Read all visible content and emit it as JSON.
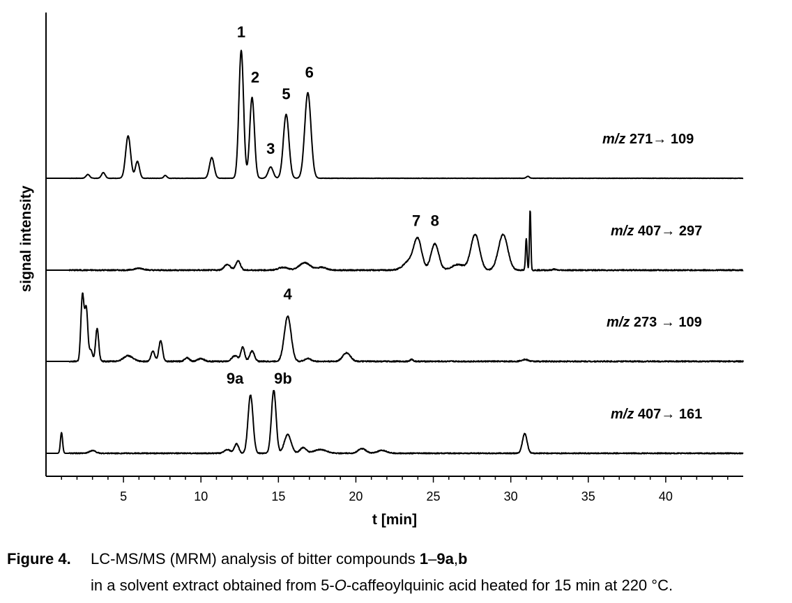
{
  "chart_data": {
    "type": "line",
    "xlabel": "t [min]",
    "ylabel": "signal intensity",
    "xlim": [
      0,
      45
    ],
    "xticks": [
      5,
      10,
      15,
      20,
      25,
      30,
      35,
      40
    ],
    "minor_tick_step": 1,
    "y_ticks_shown": false,
    "grid": false,
    "traces": [
      {
        "label_mz": "m/z",
        "label_rest": " 271→ 109",
        "baseline_end": 45,
        "peaks": [
          {
            "t": 2.7,
            "h": 0.04,
            "w": 0.12
          },
          {
            "t": 3.7,
            "h": 0.06,
            "w": 0.12
          },
          {
            "t": 5.3,
            "h": 0.45,
            "w": 0.16
          },
          {
            "t": 5.9,
            "h": 0.18,
            "w": 0.13
          },
          {
            "t": 7.7,
            "h": 0.03,
            "w": 0.1
          },
          {
            "t": 10.7,
            "h": 0.22,
            "w": 0.15
          },
          {
            "t": 12.6,
            "h": 1.36,
            "w": 0.15
          },
          {
            "t": 13.3,
            "h": 0.86,
            "w": 0.15
          },
          {
            "t": 14.5,
            "h": 0.12,
            "w": 0.16
          },
          {
            "t": 15.5,
            "h": 0.68,
            "w": 0.18
          },
          {
            "t": 16.9,
            "h": 0.91,
            "w": 0.2
          },
          {
            "t": 31.1,
            "h": 0.02,
            "w": 0.1
          }
        ],
        "noise": 0.003,
        "peak_labels": [
          {
            "text": "1",
            "t": 12.6,
            "h": 1.5
          },
          {
            "text": "2",
            "t": 13.5,
            "h": 1.02
          },
          {
            "text": "3",
            "t": 14.5,
            "h": 0.26
          },
          {
            "text": "5",
            "t": 15.5,
            "h": 0.84
          },
          {
            "text": "6",
            "t": 17.0,
            "h": 1.07
          }
        ]
      },
      {
        "label_mz": "m/z",
        "label_rest": " 407→ 297",
        "baseline_end": 45,
        "peaks": [
          {
            "t": 6.0,
            "h": 0.02,
            "w": 0.3
          },
          {
            "t": 11.7,
            "h": 0.06,
            "w": 0.2
          },
          {
            "t": 12.4,
            "h": 0.1,
            "w": 0.15
          },
          {
            "t": 15.3,
            "h": 0.03,
            "w": 0.3
          },
          {
            "t": 16.7,
            "h": 0.08,
            "w": 0.35
          },
          {
            "t": 17.8,
            "h": 0.03,
            "w": 0.3
          },
          {
            "t": 23.5,
            "h": 0.1,
            "w": 0.4
          },
          {
            "t": 24.0,
            "h": 0.3,
            "w": 0.25
          },
          {
            "t": 25.1,
            "h": 0.28,
            "w": 0.25
          },
          {
            "t": 26.6,
            "h": 0.06,
            "w": 0.4
          },
          {
            "t": 27.7,
            "h": 0.38,
            "w": 0.28
          },
          {
            "t": 29.5,
            "h": 0.38,
            "w": 0.3
          },
          {
            "t": 31.0,
            "h": 0.34,
            "w": 0.05
          },
          {
            "t": 31.25,
            "h": 0.64,
            "w": 0.045
          },
          {
            "t": 32.8,
            "h": 0.01,
            "w": 0.1
          }
        ],
        "noise": 0.012,
        "peak_labels": [
          {
            "text": "7",
            "t": 23.9,
            "h": 0.47
          },
          {
            "text": "8",
            "t": 25.1,
            "h": 0.47
          }
        ]
      },
      {
        "label_mz": "m/z",
        "label_rest": " 273 → 109",
        "baseline_end": 45,
        "peaks": [
          {
            "t": 2.35,
            "h": 0.7,
            "w": 0.1
          },
          {
            "t": 2.6,
            "h": 0.55,
            "w": 0.1
          },
          {
            "t": 2.9,
            "h": 0.12,
            "w": 0.1
          },
          {
            "t": 3.3,
            "h": 0.35,
            "w": 0.1
          },
          {
            "t": 5.3,
            "h": 0.06,
            "w": 0.3
          },
          {
            "t": 6.9,
            "h": 0.11,
            "w": 0.12
          },
          {
            "t": 7.4,
            "h": 0.22,
            "w": 0.12
          },
          {
            "t": 9.1,
            "h": 0.04,
            "w": 0.15
          },
          {
            "t": 10.0,
            "h": 0.03,
            "w": 0.2
          },
          {
            "t": 12.2,
            "h": 0.06,
            "w": 0.2
          },
          {
            "t": 12.7,
            "h": 0.15,
            "w": 0.12
          },
          {
            "t": 13.3,
            "h": 0.11,
            "w": 0.15
          },
          {
            "t": 15.6,
            "h": 0.48,
            "w": 0.22
          },
          {
            "t": 16.9,
            "h": 0.03,
            "w": 0.2
          },
          {
            "t": 19.4,
            "h": 0.09,
            "w": 0.25
          },
          {
            "t": 23.6,
            "h": 0.02,
            "w": 0.1
          },
          {
            "t": 30.9,
            "h": 0.02,
            "w": 0.2
          }
        ],
        "noise": 0.012,
        "peak_labels": [
          {
            "text": "4",
            "t": 15.6,
            "h": 0.66
          }
        ]
      },
      {
        "label_mz": "m/z",
        "label_rest": " 407→ 161",
        "baseline_end": 45,
        "peaks": [
          {
            "t": 1.0,
            "h": 0.22,
            "w": 0.07
          },
          {
            "t": 3.0,
            "h": 0.03,
            "w": 0.2
          },
          {
            "t": 11.7,
            "h": 0.04,
            "w": 0.2
          },
          {
            "t": 12.3,
            "h": 0.1,
            "w": 0.14
          },
          {
            "t": 13.2,
            "h": 0.62,
            "w": 0.16
          },
          {
            "t": 14.7,
            "h": 0.67,
            "w": 0.15
          },
          {
            "t": 15.6,
            "h": 0.2,
            "w": 0.22
          },
          {
            "t": 16.6,
            "h": 0.06,
            "w": 0.2
          },
          {
            "t": 17.7,
            "h": 0.04,
            "w": 0.4
          },
          {
            "t": 20.4,
            "h": 0.05,
            "w": 0.25
          },
          {
            "t": 21.7,
            "h": 0.03,
            "w": 0.3
          },
          {
            "t": 30.9,
            "h": 0.21,
            "w": 0.15
          }
        ],
        "noise": 0.01,
        "peak_labels": [
          {
            "text": "9a",
            "t": 12.2,
            "h": 0.74
          },
          {
            "text": "9b",
            "t": 15.3,
            "h": 0.74
          }
        ]
      }
    ]
  },
  "caption": {
    "fig_label": "Figure 4.",
    "line1_pre": "LC-MS/MS (MRM) analysis of bitter compounds ",
    "line1_b1": "1",
    "line1_dash": "–",
    "line1_b2": "9a",
    "line1_comma": ",",
    "line1_b3": "b",
    "line2_pre": "in a solvent extract obtained from 5-",
    "line2_italic": "O",
    "line2_post": "-caffeoylquinic acid heated for 15 min at 220 °C."
  }
}
